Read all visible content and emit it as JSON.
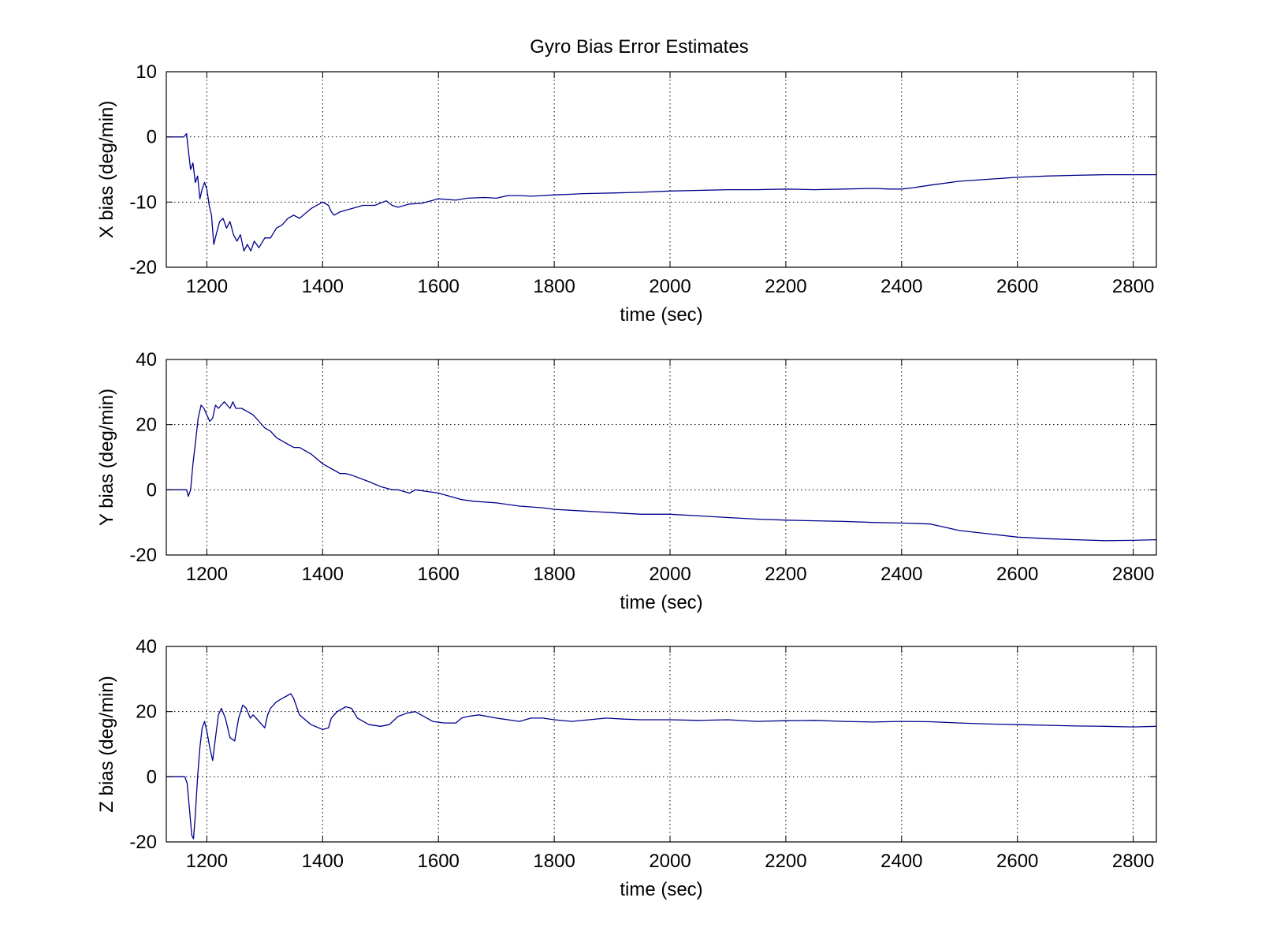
{
  "figure": {
    "title": "Gyro Bias Error Estimates"
  },
  "colors": {
    "line": "#00008b",
    "grid": "#000000",
    "axes": "#000000",
    "background": "#ffffff"
  },
  "chart_data": [
    {
      "type": "line",
      "title": "Gyro Bias Error Estimates",
      "xlabel": "time (sec)",
      "ylabel": "X bias (deg/min)",
      "xlim": [
        1130,
        2840
      ],
      "ylim": [
        -20,
        10
      ],
      "xticks": [
        1200,
        1400,
        1600,
        1800,
        2000,
        2200,
        2400,
        2600,
        2800
      ],
      "yticks": [
        -20,
        -10,
        0,
        10
      ],
      "grid": true,
      "series": [
        {
          "x": [
            1130,
            1160,
            1165,
            1168,
            1172,
            1176,
            1180,
            1184,
            1188,
            1192,
            1196,
            1200,
            1204,
            1208,
            1212,
            1216,
            1222,
            1228,
            1234,
            1240,
            1246,
            1252,
            1258,
            1264,
            1270,
            1276,
            1282,
            1290,
            1300,
            1310,
            1320,
            1330,
            1340,
            1350,
            1360,
            1380,
            1400,
            1410,
            1415,
            1420,
            1430,
            1450,
            1470,
            1490,
            1510,
            1520,
            1530,
            1550,
            1570,
            1600,
            1630,
            1650,
            1680,
            1700,
            1720,
            1740,
            1760,
            1780,
            1800,
            1830,
            1850,
            1900,
            1950,
            2000,
            2050,
            2100,
            2150,
            2200,
            2250,
            2300,
            2350,
            2380,
            2400,
            2420,
            2450,
            2500,
            2550,
            2600,
            2650,
            2700,
            2750,
            2800,
            2840
          ],
          "y": [
            0,
            0,
            0.5,
            -2,
            -5,
            -4,
            -7,
            -6,
            -9.5,
            -8,
            -7,
            -8,
            -10.5,
            -12,
            -16.5,
            -15,
            -13,
            -12.5,
            -14,
            -13,
            -15,
            -16,
            -15,
            -17.5,
            -16.5,
            -17.5,
            -16,
            -17,
            -15.5,
            -15.5,
            -14,
            -13.5,
            -12.5,
            -12,
            -12.5,
            -11,
            -10,
            -10.5,
            -11.5,
            -12,
            -11.5,
            -11,
            -10.5,
            -10.5,
            -9.8,
            -10.5,
            -10.8,
            -10.3,
            -10.2,
            -9.5,
            -9.7,
            -9.4,
            -9.3,
            -9.4,
            -9,
            -9,
            -9.1,
            -9,
            -8.9,
            -8.8,
            -8.7,
            -8.6,
            -8.5,
            -8.3,
            -8.2,
            -8.1,
            -8.1,
            -8,
            -8.1,
            -8,
            -7.9,
            -8,
            -8,
            -7.8,
            -7.4,
            -6.8,
            -6.5,
            -6.2,
            -6,
            -5.9,
            -5.8,
            -5.8,
            -5.8
          ]
        }
      ]
    },
    {
      "type": "line",
      "xlabel": "time (sec)",
      "ylabel": "Y bias (deg/min)",
      "xlim": [
        1130,
        2840
      ],
      "ylim": [
        -20,
        40
      ],
      "xticks": [
        1200,
        1400,
        1600,
        1800,
        2000,
        2200,
        2400,
        2600,
        2800
      ],
      "yticks": [
        -20,
        0,
        20,
        40
      ],
      "grid": true,
      "series": [
        {
          "x": [
            1130,
            1160,
            1165,
            1168,
            1172,
            1176,
            1180,
            1185,
            1190,
            1195,
            1200,
            1205,
            1210,
            1215,
            1220,
            1230,
            1240,
            1245,
            1250,
            1260,
            1270,
            1280,
            1290,
            1300,
            1310,
            1320,
            1330,
            1340,
            1350,
            1360,
            1380,
            1400,
            1420,
            1430,
            1440,
            1450,
            1480,
            1500,
            1520,
            1530,
            1550,
            1560,
            1580,
            1600,
            1620,
            1640,
            1660,
            1700,
            1740,
            1780,
            1800,
            1850,
            1900,
            1950,
            2000,
            2050,
            2100,
            2150,
            2200,
            2250,
            2300,
            2350,
            2400,
            2450,
            2500,
            2550,
            2600,
            2650,
            2700,
            2750,
            2800,
            2840
          ],
          "y": [
            0,
            0,
            0,
            -2,
            0,
            8,
            14,
            22,
            26,
            25,
            23,
            21,
            22,
            26,
            25,
            27,
            25,
            27,
            25,
            25,
            24,
            23,
            21,
            19,
            18,
            16,
            15,
            14,
            13,
            13,
            11,
            8,
            6,
            5,
            5,
            4.5,
            2.5,
            1,
            0,
            0,
            -1,
            0,
            -0.5,
            -1,
            -2,
            -3,
            -3.5,
            -4,
            -5,
            -5.5,
            -6,
            -6.5,
            -7,
            -7.5,
            -7.5,
            -8,
            -8.5,
            -9,
            -9.3,
            -9.5,
            -9.7,
            -10,
            -10.2,
            -10.5,
            -12.5,
            -13.5,
            -14.5,
            -15,
            -15.3,
            -15.6,
            -15.5,
            -15.3
          ]
        }
      ]
    },
    {
      "type": "line",
      "xlabel": "time (sec)",
      "ylabel": "Z bias (deg/min)",
      "xlim": [
        1130,
        2840
      ],
      "ylim": [
        -20,
        40
      ],
      "xticks": [
        1200,
        1400,
        1600,
        1800,
        2000,
        2200,
        2400,
        2600,
        2800
      ],
      "yticks": [
        -20,
        0,
        20,
        40
      ],
      "grid": true,
      "series": [
        {
          "x": [
            1130,
            1162,
            1166,
            1170,
            1174,
            1177,
            1180,
            1184,
            1188,
            1192,
            1196,
            1200,
            1205,
            1210,
            1215,
            1220,
            1225,
            1232,
            1240,
            1248,
            1255,
            1262,
            1268,
            1275,
            1280,
            1290,
            1300,
            1305,
            1310,
            1320,
            1330,
            1340,
            1345,
            1350,
            1360,
            1380,
            1400,
            1410,
            1415,
            1425,
            1440,
            1450,
            1460,
            1480,
            1500,
            1515,
            1530,
            1545,
            1560,
            1570,
            1590,
            1610,
            1630,
            1640,
            1650,
            1670,
            1700,
            1720,
            1740,
            1760,
            1780,
            1800,
            1830,
            1860,
            1890,
            1920,
            1950,
            2000,
            2050,
            2100,
            2150,
            2200,
            2250,
            2300,
            2350,
            2400,
            2450,
            2500,
            2550,
            2600,
            2650,
            2700,
            2750,
            2800,
            2840
          ],
          "y": [
            0,
            0,
            -2,
            -10,
            -18,
            -19,
            -12,
            0,
            9,
            15,
            17,
            14,
            9,
            5,
            12,
            19,
            21,
            18,
            12,
            11,
            18,
            22,
            21,
            18,
            19,
            17,
            15,
            19,
            21,
            23,
            24,
            25,
            25.5,
            24,
            19,
            16,
            14.5,
            15,
            18,
            20,
            21.5,
            21,
            18,
            16,
            15.5,
            16,
            18.5,
            19.5,
            20,
            19,
            17,
            16.5,
            16.5,
            18,
            18.5,
            19,
            18,
            17.5,
            17,
            18,
            18,
            17.5,
            17,
            17.5,
            18,
            17.7,
            17.5,
            17.5,
            17.3,
            17.5,
            17,
            17.2,
            17.3,
            17,
            16.8,
            17,
            16.9,
            16.5,
            16.2,
            16,
            15.8,
            15.6,
            15.5,
            15.3,
            15.5
          ]
        }
      ]
    }
  ]
}
